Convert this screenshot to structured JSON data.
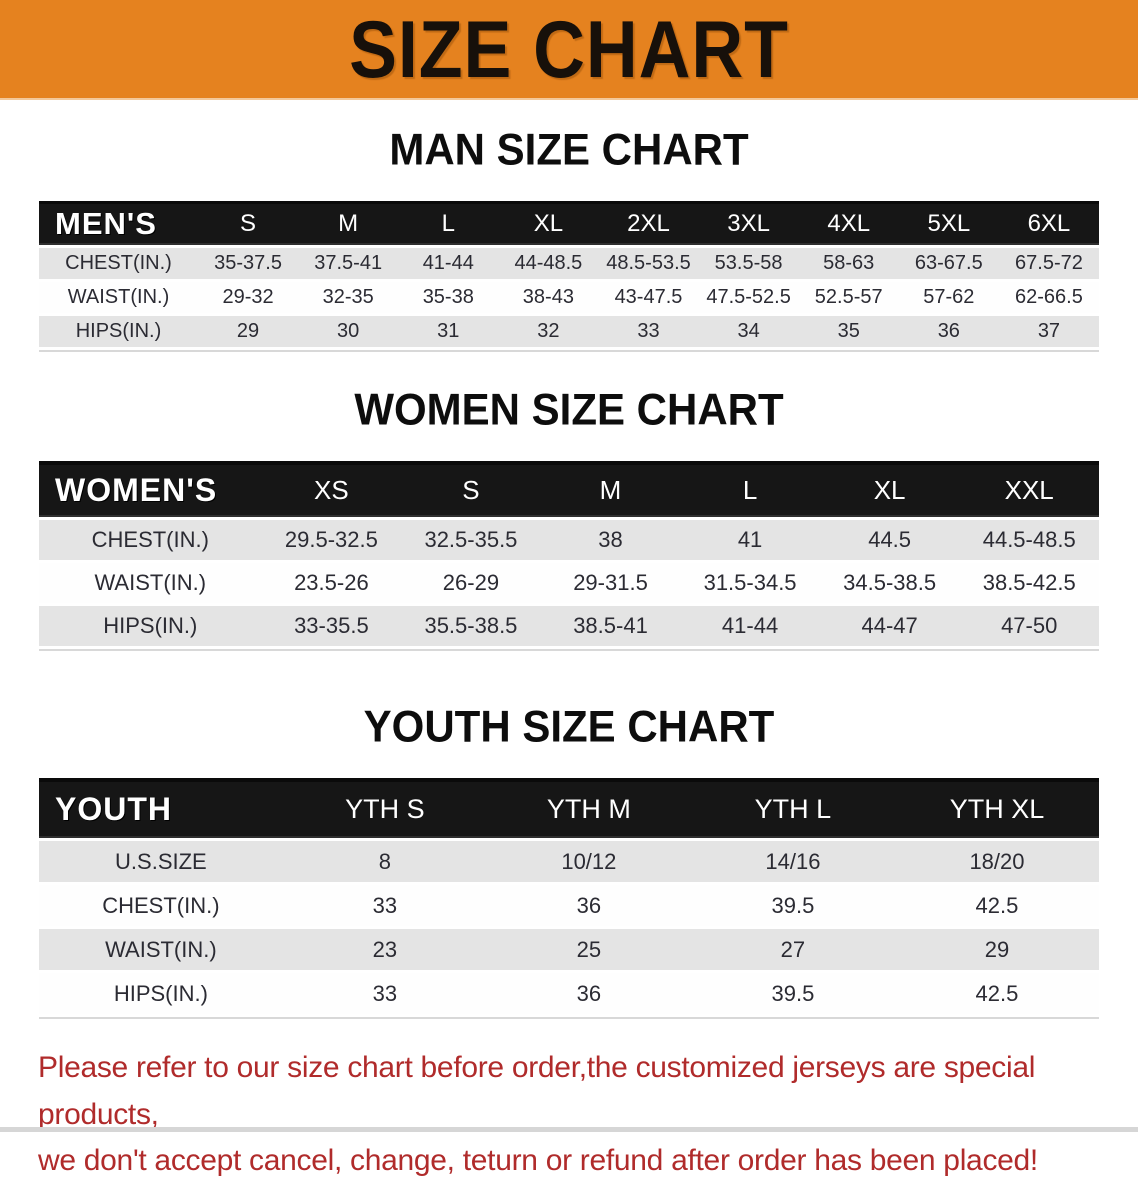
{
  "banner": {
    "title": "SIZE CHART",
    "bg_color": "#e5821f",
    "text_color": "#17100a"
  },
  "colors": {
    "accent_orange": "#e5821f",
    "table_header_black": "#161616",
    "row_stripe_gray": "#e4e4e4",
    "disclaimer_red": "#b02b2b"
  },
  "sections": [
    {
      "heading": "MAN SIZE CHART",
      "table": {
        "corner_label": "MEN'S",
        "columns": [
          "S",
          "M",
          "L",
          "XL",
          "2XL",
          "3XL",
          "4XL",
          "5XL",
          "6XL"
        ],
        "rows": [
          {
            "label": "CHEST(IN.)",
            "values": [
              "35-37.5",
              "37.5-41",
              "41-44",
              "44-48.5",
              "48.5-53.5",
              "53.5-58",
              "58-63",
              "63-67.5",
              "67.5-72"
            ]
          },
          {
            "label": "WAIST(IN.)",
            "values": [
              "29-32",
              "32-35",
              "35-38",
              "38-43",
              "43-47.5",
              "47.5-52.5",
              "52.5-57",
              "57-62",
              "62-66.5"
            ]
          },
          {
            "label": "HIPS(IN.)",
            "values": [
              "29",
              "30",
              "31",
              "32",
              "33",
              "34",
              "35",
              "36",
              "37"
            ]
          }
        ]
      }
    },
    {
      "heading": "WOMEN SIZE CHART",
      "table": {
        "corner_label": "WOMEN'S",
        "columns": [
          "XS",
          "S",
          "M",
          "L",
          "XL",
          "XXL"
        ],
        "rows": [
          {
            "label": "CHEST(IN.)",
            "values": [
              "29.5-32.5",
              "32.5-35.5",
              "38",
              "41",
              "44.5",
              "44.5-48.5"
            ]
          },
          {
            "label": "WAIST(IN.)",
            "values": [
              "23.5-26",
              "26-29",
              "29-31.5",
              "31.5-34.5",
              "34.5-38.5",
              "38.5-42.5"
            ]
          },
          {
            "label": "HIPS(IN.)",
            "values": [
              "33-35.5",
              "35.5-38.5",
              "38.5-41",
              "41-44",
              "44-47",
              "47-50"
            ]
          }
        ]
      }
    },
    {
      "heading": "YOUTH SIZE CHART",
      "table": {
        "corner_label": "YOUTH",
        "columns": [
          "YTH S",
          "YTH M",
          "YTH L",
          "YTH XL"
        ],
        "rows": [
          {
            "label": "U.S.SIZE",
            "values": [
              "8",
              "10/12",
              "14/16",
              "18/20"
            ]
          },
          {
            "label": "CHEST(IN.)",
            "values": [
              "33",
              "36",
              "39.5",
              "42.5"
            ]
          },
          {
            "label": "WAIST(IN.)",
            "values": [
              "23",
              "25",
              "27",
              "29"
            ]
          },
          {
            "label": "HIPS(IN.)",
            "values": [
              "33",
              "36",
              "39.5",
              "42.5"
            ]
          }
        ]
      }
    }
  ],
  "footer": {
    "lines": [
      "Please refer to our size chart before order,the customized jerseys are special products,",
      "we don't accept cancel, change, teturn or refund after order has been placed!"
    ]
  }
}
